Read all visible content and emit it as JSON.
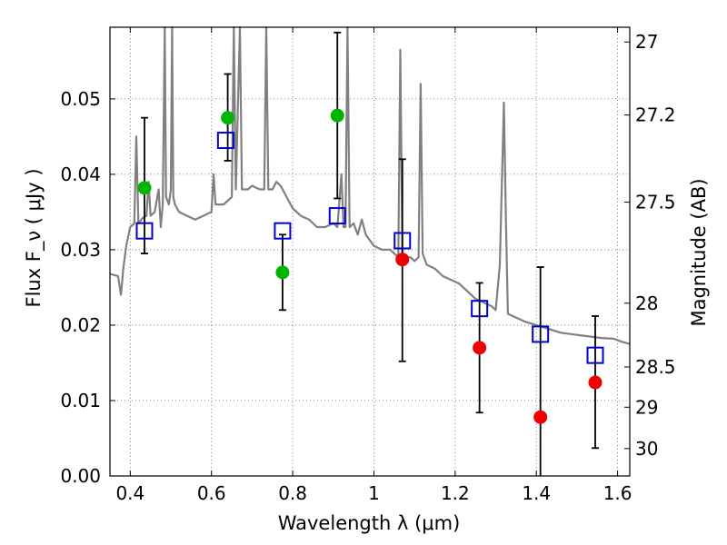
{
  "chart_data": {
    "type": "scatter",
    "xlabel": "Wavelength  λ (μm)",
    "ylabel": "Flux  F_ν  ( μJy )",
    "y2label": "Magnitude (AB)",
    "xlim": [
      0.35,
      1.63
    ],
    "ylim": [
      0.0,
      0.0595
    ],
    "grid": true,
    "x_ticks": [
      0.4,
      0.6,
      0.8,
      1.0,
      1.2,
      1.4,
      1.6
    ],
    "x_tick_labels": [
      "0.4",
      "0.6",
      "0.8",
      "1",
      "1.2",
      "1.4",
      "1.6"
    ],
    "y_ticks": [
      0.0,
      0.01,
      0.02,
      0.03,
      0.04,
      0.05
    ],
    "y_tick_labels": [
      "0.00",
      "0.01",
      "0.02",
      "0.03",
      "0.04",
      "0.05"
    ],
    "y2_ticks": [
      {
        "label": "27",
        "mag": 27.0
      },
      {
        "label": "27.2",
        "mag": 27.2
      },
      {
        "label": "27.5",
        "mag": 27.5
      },
      {
        "label": "28",
        "mag": 28.0
      },
      {
        "label": "28.5",
        "mag": 28.5
      },
      {
        "label": "29",
        "mag": 29.0
      },
      {
        "label": "30",
        "mag": 30.0
      }
    ],
    "colors": {
      "spectrum": "#808080",
      "model": "#0000cc",
      "detected": "#00b400",
      "upper": "#ee0000",
      "errorbar": "#000000"
    },
    "series": [
      {
        "kind": "spectrum",
        "points": [
          [
            0.35,
            0.0268
          ],
          [
            0.37,
            0.0265
          ],
          [
            0.377,
            0.024
          ],
          [
            0.383,
            0.0275
          ],
          [
            0.39,
            0.0305
          ],
          [
            0.4,
            0.033
          ],
          [
            0.41,
            0.0335
          ],
          [
            0.415,
            0.045
          ],
          [
            0.42,
            0.0335
          ],
          [
            0.43,
            0.0342
          ],
          [
            0.44,
            0.0345
          ],
          [
            0.445,
            0.039
          ],
          [
            0.45,
            0.0345
          ],
          [
            0.46,
            0.035
          ],
          [
            0.47,
            0.038
          ],
          [
            0.475,
            0.033
          ],
          [
            0.48,
            0.036
          ],
          [
            0.485,
            0.0595
          ],
          [
            0.488,
            0.037
          ],
          [
            0.495,
            0.036
          ],
          [
            0.5,
            0.038
          ],
          [
            0.503,
            0.0595
          ],
          [
            0.506,
            0.037
          ],
          [
            0.51,
            0.036
          ],
          [
            0.52,
            0.035
          ],
          [
            0.54,
            0.0345
          ],
          [
            0.56,
            0.034
          ],
          [
            0.58,
            0.0345
          ],
          [
            0.6,
            0.035
          ],
          [
            0.605,
            0.04
          ],
          [
            0.61,
            0.036
          ],
          [
            0.62,
            0.036
          ],
          [
            0.63,
            0.036
          ],
          [
            0.64,
            0.0365
          ],
          [
            0.65,
            0.037
          ],
          [
            0.655,
            0.0595
          ],
          [
            0.66,
            0.038
          ],
          [
            0.67,
            0.0595
          ],
          [
            0.675,
            0.038
          ],
          [
            0.69,
            0.038
          ],
          [
            0.7,
            0.0385
          ],
          [
            0.71,
            0.0382
          ],
          [
            0.72,
            0.038
          ],
          [
            0.73,
            0.038
          ],
          [
            0.735,
            0.0595
          ],
          [
            0.74,
            0.038
          ],
          [
            0.75,
            0.038
          ],
          [
            0.76,
            0.039
          ],
          [
            0.77,
            0.0385
          ],
          [
            0.78,
            0.0375
          ],
          [
            0.79,
            0.0365
          ],
          [
            0.8,
            0.0355
          ],
          [
            0.82,
            0.0345
          ],
          [
            0.84,
            0.034
          ],
          [
            0.86,
            0.033
          ],
          [
            0.88,
            0.033
          ],
          [
            0.9,
            0.0335
          ],
          [
            0.91,
            0.033
          ],
          [
            0.92,
            0.04
          ],
          [
            0.925,
            0.033
          ],
          [
            0.93,
            0.033
          ],
          [
            0.935,
            0.0595
          ],
          [
            0.94,
            0.033
          ],
          [
            0.95,
            0.0335
          ],
          [
            0.96,
            0.032
          ],
          [
            0.97,
            0.034
          ],
          [
            0.98,
            0.032
          ],
          [
            1.0,
            0.0305
          ],
          [
            1.02,
            0.03
          ],
          [
            1.04,
            0.03
          ],
          [
            1.06,
            0.029
          ],
          [
            1.065,
            0.0565
          ],
          [
            1.07,
            0.0295
          ],
          [
            1.08,
            0.029
          ],
          [
            1.09,
            0.029
          ],
          [
            1.1,
            0.0285
          ],
          [
            1.11,
            0.029
          ],
          [
            1.115,
            0.052
          ],
          [
            1.12,
            0.0295
          ],
          [
            1.13,
            0.028
          ],
          [
            1.15,
            0.0275
          ],
          [
            1.17,
            0.0265
          ],
          [
            1.19,
            0.026
          ],
          [
            1.21,
            0.0255
          ],
          [
            1.23,
            0.0245
          ],
          [
            1.25,
            0.0235
          ],
          [
            1.27,
            0.023
          ],
          [
            1.29,
            0.0225
          ],
          [
            1.3,
            0.022
          ],
          [
            1.31,
            0.028
          ],
          [
            1.32,
            0.0495
          ],
          [
            1.325,
            0.034
          ],
          [
            1.33,
            0.0215
          ],
          [
            1.35,
            0.021
          ],
          [
            1.37,
            0.0205
          ],
          [
            1.4,
            0.02
          ],
          [
            1.43,
            0.0195
          ],
          [
            1.46,
            0.019
          ],
          [
            1.5,
            0.0187
          ],
          [
            1.53,
            0.0185
          ],
          [
            1.56,
            0.0183
          ],
          [
            1.59,
            0.0182
          ],
          [
            1.61,
            0.0178
          ],
          [
            1.63,
            0.0175
          ]
        ]
      },
      {
        "kind": "model",
        "marker": "open-square",
        "points": [
          [
            0.435,
            0.0325
          ],
          [
            0.635,
            0.0445
          ],
          [
            0.775,
            0.0325
          ],
          [
            0.91,
            0.0345
          ],
          [
            1.07,
            0.0312
          ],
          [
            1.26,
            0.0222
          ],
          [
            1.41,
            0.0188
          ],
          [
            1.545,
            0.016
          ]
        ]
      },
      {
        "kind": "detected",
        "marker": "filled-circle",
        "points": [
          [
            0.435,
            0.0382
          ],
          [
            0.64,
            0.0475
          ],
          [
            0.775,
            0.027
          ],
          [
            0.91,
            0.0478
          ]
        ]
      },
      {
        "kind": "upper",
        "marker": "filled-circle",
        "points": [
          [
            1.07,
            0.0287
          ],
          [
            1.26,
            0.017
          ],
          [
            1.41,
            0.0078
          ],
          [
            1.545,
            0.0124
          ]
        ]
      },
      {
        "kind": "errorbars",
        "bars": [
          {
            "x": 0.435,
            "low": 0.0295,
            "high": 0.0475
          },
          {
            "x": 0.64,
            "low": 0.0418,
            "high": 0.0533
          },
          {
            "x": 0.775,
            "low": 0.022,
            "high": 0.032
          },
          {
            "x": 0.91,
            "low": 0.0368,
            "high": 0.0588
          },
          {
            "x": 1.07,
            "low": 0.0152,
            "high": 0.042
          },
          {
            "x": 1.26,
            "low": 0.0084,
            "high": 0.0256
          },
          {
            "x": 1.41,
            "low": 0.0,
            "high": 0.0277
          },
          {
            "x": 1.545,
            "low": 0.0037,
            "high": 0.0212
          }
        ]
      }
    ]
  }
}
